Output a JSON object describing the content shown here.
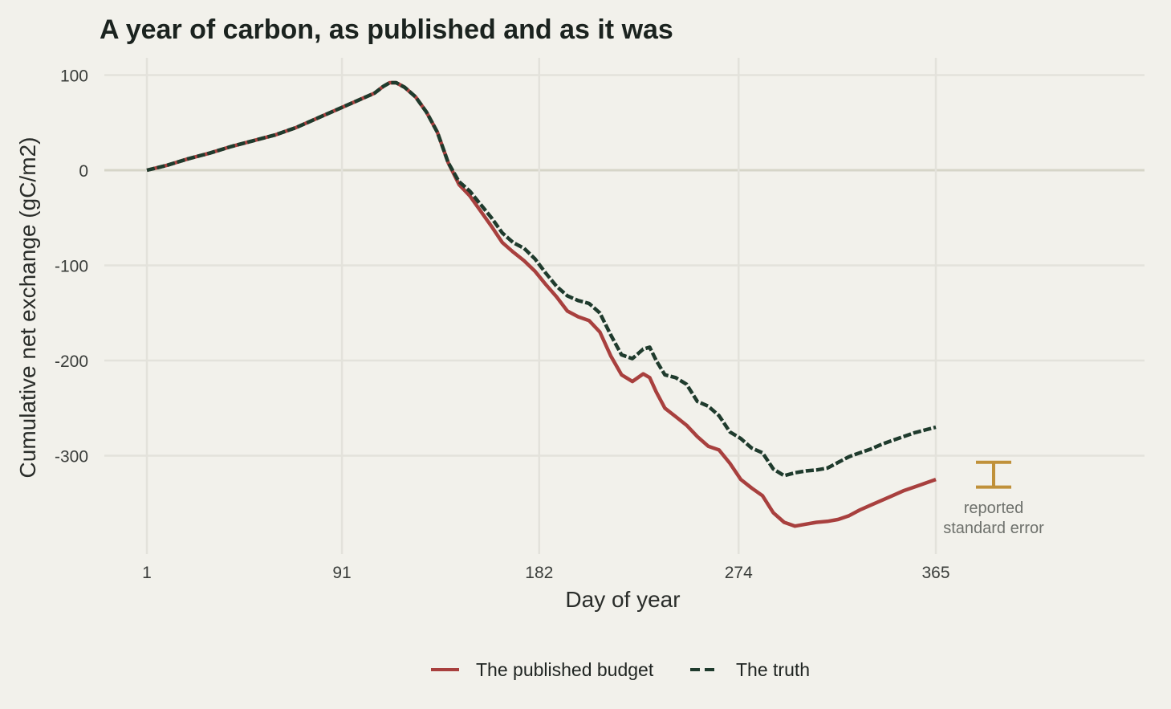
{
  "chart_data": {
    "type": "line",
    "title": "A year of carbon, as published and as it was",
    "xlabel": "Day of year",
    "ylabel": "Cumulative net exchange (gC/m2)",
    "xlim": [
      1,
      365
    ],
    "ylim": [
      -400,
      100
    ],
    "x_ticks": [
      1,
      91,
      182,
      274,
      365
    ],
    "x_tick_labels": [
      "1",
      "91",
      "182",
      "274",
      "365"
    ],
    "y_ticks": [
      100,
      0,
      -100,
      -200,
      -300
    ],
    "y_tick_labels": [
      "100",
      "0",
      "-100",
      "-200",
      "-300"
    ],
    "grid": true,
    "legend_position": "bottom",
    "series": [
      {
        "name": "The published budget",
        "color": "#a8403e",
        "dash": "solid",
        "points": [
          [
            1,
            0
          ],
          [
            10,
            5
          ],
          [
            20,
            12
          ],
          [
            30,
            18
          ],
          [
            40,
            25
          ],
          [
            50,
            31
          ],
          [
            60,
            37
          ],
          [
            70,
            45
          ],
          [
            80,
            55
          ],
          [
            91,
            66
          ],
          [
            100,
            75
          ],
          [
            106,
            81
          ],
          [
            110,
            88
          ],
          [
            113,
            92
          ],
          [
            116,
            92
          ],
          [
            120,
            87
          ],
          [
            125,
            77
          ],
          [
            130,
            61
          ],
          [
            135,
            40
          ],
          [
            140,
            8
          ],
          [
            145,
            -15
          ],
          [
            150,
            -27
          ],
          [
            155,
            -43
          ],
          [
            160,
            -59
          ],
          [
            165,
            -76
          ],
          [
            170,
            -86
          ],
          [
            175,
            -95
          ],
          [
            180,
            -106
          ],
          [
            185,
            -120
          ],
          [
            190,
            -133
          ],
          [
            195,
            -148
          ],
          [
            200,
            -154
          ],
          [
            205,
            -158
          ],
          [
            210,
            -170
          ],
          [
            215,
            -195
          ],
          [
            220,
            -215
          ],
          [
            225,
            -222
          ],
          [
            230,
            -214
          ],
          [
            233,
            -218
          ],
          [
            236,
            -233
          ],
          [
            240,
            -250
          ],
          [
            245,
            -259
          ],
          [
            250,
            -268
          ],
          [
            255,
            -280
          ],
          [
            260,
            -290
          ],
          [
            265,
            -294
          ],
          [
            270,
            -308
          ],
          [
            275,
            -325
          ],
          [
            280,
            -334
          ],
          [
            285,
            -342
          ],
          [
            290,
            -360
          ],
          [
            295,
            -370
          ],
          [
            300,
            -374
          ],
          [
            305,
            -372
          ],
          [
            310,
            -370
          ],
          [
            315,
            -369
          ],
          [
            320,
            -367
          ],
          [
            325,
            -363
          ],
          [
            330,
            -357
          ],
          [
            335,
            -352
          ],
          [
            340,
            -347
          ],
          [
            345,
            -342
          ],
          [
            350,
            -337
          ],
          [
            355,
            -333
          ],
          [
            360,
            -329
          ],
          [
            365,
            -325
          ]
        ]
      },
      {
        "name": "The truth",
        "color": "#1f3b2d",
        "dash": "dashed",
        "points": [
          [
            1,
            0
          ],
          [
            10,
            5
          ],
          [
            20,
            12
          ],
          [
            30,
            18
          ],
          [
            40,
            25
          ],
          [
            50,
            31
          ],
          [
            60,
            37
          ],
          [
            70,
            45
          ],
          [
            80,
            55
          ],
          [
            91,
            66
          ],
          [
            100,
            75
          ],
          [
            106,
            81
          ],
          [
            110,
            88
          ],
          [
            113,
            92
          ],
          [
            116,
            92
          ],
          [
            120,
            87
          ],
          [
            125,
            77
          ],
          [
            130,
            61
          ],
          [
            135,
            40
          ],
          [
            140,
            8
          ],
          [
            145,
            -12
          ],
          [
            150,
            -22
          ],
          [
            155,
            -36
          ],
          [
            160,
            -50
          ],
          [
            165,
            -66
          ],
          [
            170,
            -76
          ],
          [
            175,
            -82
          ],
          [
            180,
            -93
          ],
          [
            185,
            -108
          ],
          [
            190,
            -122
          ],
          [
            195,
            -132
          ],
          [
            200,
            -137
          ],
          [
            205,
            -140
          ],
          [
            210,
            -150
          ],
          [
            215,
            -173
          ],
          [
            220,
            -194
          ],
          [
            225,
            -198
          ],
          [
            230,
            -188
          ],
          [
            233,
            -186
          ],
          [
            236,
            -200
          ],
          [
            240,
            -215
          ],
          [
            245,
            -218
          ],
          [
            250,
            -225
          ],
          [
            255,
            -243
          ],
          [
            260,
            -248
          ],
          [
            265,
            -258
          ],
          [
            270,
            -275
          ],
          [
            275,
            -282
          ],
          [
            280,
            -292
          ],
          [
            285,
            -297
          ],
          [
            290,
            -314
          ],
          [
            295,
            -321
          ],
          [
            300,
            -318
          ],
          [
            305,
            -316
          ],
          [
            310,
            -315
          ],
          [
            315,
            -313
          ],
          [
            320,
            -307
          ],
          [
            325,
            -301
          ],
          [
            330,
            -297
          ],
          [
            335,
            -293
          ],
          [
            340,
            -288
          ],
          [
            345,
            -284
          ],
          [
            350,
            -280
          ],
          [
            355,
            -276
          ],
          [
            360,
            -273
          ],
          [
            365,
            -270
          ]
        ]
      }
    ],
    "annotation": {
      "label_line1": "reported",
      "label_line2": "standard error",
      "y_center": -320,
      "half_width": 13,
      "color": "#c0913a"
    }
  }
}
